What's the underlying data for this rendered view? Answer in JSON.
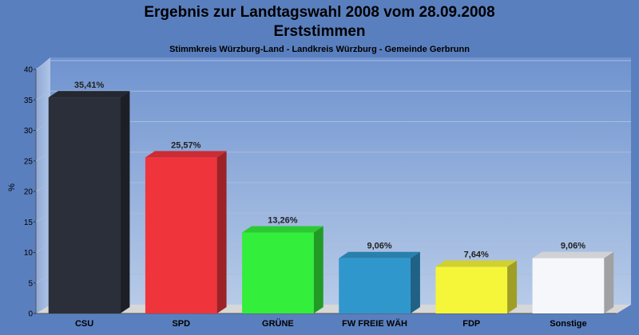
{
  "chart_data": {
    "type": "bar",
    "title": "Ergebnis zur Landtagswahl 2008 vom 28.09.2008",
    "title2": "Erststimmen",
    "subtitle": "Stimmkreis Würzburg-Land - Landkreis Würzburg - Gemeinde Gerbrunn",
    "ylabel": "%",
    "xlabel": "",
    "ylim": [
      0,
      40
    ],
    "yticks": [
      0,
      5,
      10,
      15,
      20,
      25,
      30,
      35,
      40
    ],
    "grid": true,
    "categories": [
      "CSU",
      "SPD",
      "GRÜNE",
      "FW FREIE WÄH",
      "FDP",
      "Sonstige"
    ],
    "values": [
      35.41,
      25.57,
      13.26,
      9.06,
      7.64,
      9.06
    ],
    "labels": [
      "35,41%",
      "25,57%",
      "13,26%",
      "9,06%",
      "7,64%",
      "9,06%"
    ],
    "colors": [
      "#2b2f3a",
      "#f0343c",
      "#33ee3b",
      "#3097cc",
      "#f5f53a",
      "#f5f7fb"
    ]
  }
}
